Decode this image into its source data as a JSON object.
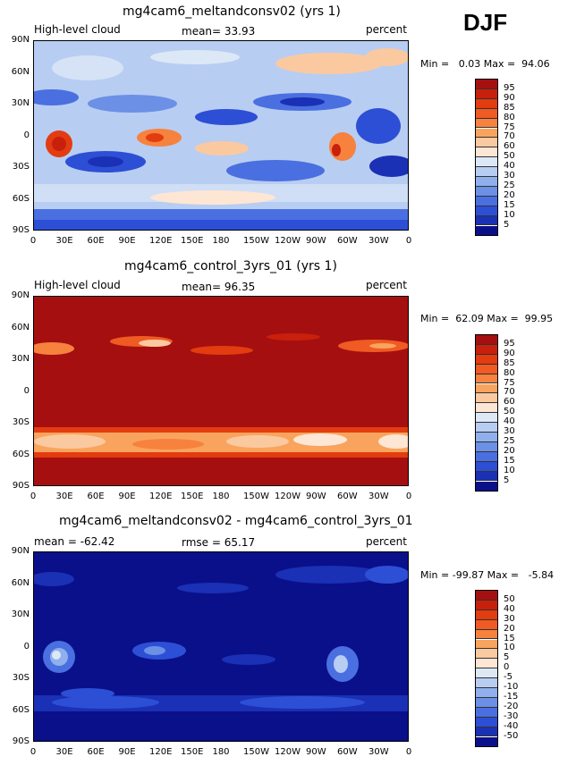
{
  "season": "DJF",
  "lon_labels": [
    "0",
    "30E",
    "60E",
    "90E",
    "120E",
    "150E",
    "180",
    "150W",
    "120W",
    "90W",
    "60W",
    "30W",
    "0"
  ],
  "lat_labels": [
    "90N",
    "60N",
    "30N",
    "0",
    "30S",
    "60S",
    "90S"
  ],
  "panels": [
    {
      "title": "mg4cam6_meltandconsv02 (yrs 1)",
      "left_label": "High-level cloud",
      "center_label": "mean=  33.93",
      "right_label": "percent",
      "minmax": "Min =   0.03 Max =  94.06",
      "colorbar_labels": [
        "95",
        "90",
        "85",
        "80",
        "75",
        "70",
        "60",
        "50",
        "40",
        "30",
        "25",
        "20",
        "15",
        "10",
        "5"
      ],
      "colorbar_colors": [
        "#a50f0f",
        "#c8200c",
        "#e23c10",
        "#f05a23",
        "#f6823e",
        "#f9a45e",
        "#fbc9a0",
        "#fde6d3",
        "#dde8f7",
        "#b8cdf2",
        "#8fb0ec",
        "#6b90e6",
        "#4a6fe0",
        "#2d4fd5",
        "#1a30b5",
        "#0a108a"
      ]
    },
    {
      "title": "mg4cam6_control_3yrs_01 (yrs 1)",
      "left_label": "High-level cloud",
      "center_label": "mean=  96.35",
      "right_label": "percent",
      "minmax": "Min =  62.09 Max =  99.95",
      "colorbar_labels": [
        "95",
        "90",
        "85",
        "80",
        "75",
        "70",
        "60",
        "50",
        "40",
        "30",
        "25",
        "20",
        "15",
        "10",
        "5"
      ],
      "colorbar_colors": [
        "#a50f0f",
        "#c8200c",
        "#e23c10",
        "#f05a23",
        "#f6823e",
        "#f9a45e",
        "#fbc9a0",
        "#fde6d3",
        "#dde8f7",
        "#b8cdf2",
        "#8fb0ec",
        "#6b90e6",
        "#4a6fe0",
        "#2d4fd5",
        "#1a30b5",
        "#0a108a"
      ]
    },
    {
      "title": "mg4cam6_meltandconsv02 - mg4cam6_control_3yrs_01",
      "left_label": "mean = -62.42",
      "center_label": "rmse =  65.17",
      "right_label": "percent",
      "minmax": "Min = -99.87 Max =   -5.84",
      "colorbar_labels": [
        "50",
        "40",
        "30",
        "20",
        "15",
        "10",
        "5",
        "0",
        "-5",
        "-10",
        "-15",
        "-20",
        "-30",
        "-40",
        "-50"
      ],
      "colorbar_colors": [
        "#a50f0f",
        "#c8200c",
        "#e23c10",
        "#f05a23",
        "#f6823e",
        "#f9a45e",
        "#fbc9a0",
        "#fde6d3",
        "#dde8f7",
        "#b8cdf2",
        "#8fb0ec",
        "#6b90e6",
        "#4a6fe0",
        "#2d4fd5",
        "#1a30b5",
        "#0a108a"
      ]
    }
  ]
}
